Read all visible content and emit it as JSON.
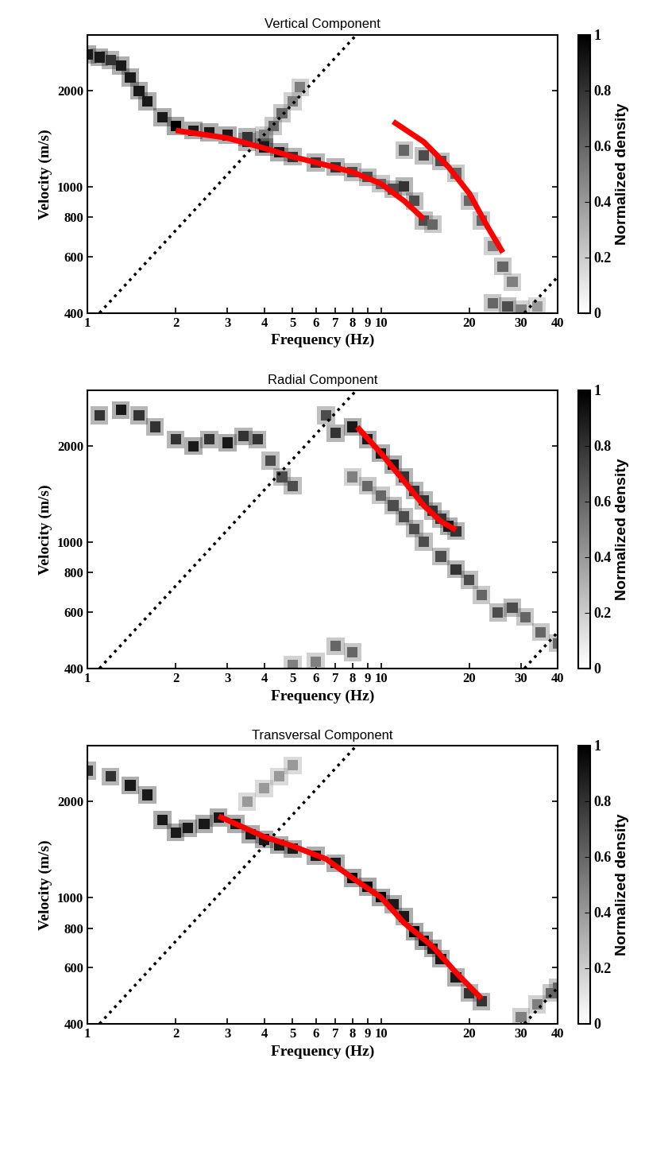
{
  "chart_data": [
    {
      "type": "density",
      "title": "Vertical Component",
      "x_label": "Frequency (Hz)",
      "y_label": "Velocity (m/s)",
      "log": true,
      "xlim": [
        1,
        40
      ],
      "ylim": [
        400,
        3000
      ],
      "xticks": [
        1,
        2,
        3,
        4,
        5,
        6,
        7,
        8,
        9,
        10,
        20,
        30,
        40
      ],
      "yticks": [
        400,
        600,
        800,
        1000,
        2000
      ],
      "colorbar": {
        "label": "Normalized density",
        "range": [
          0,
          1
        ],
        "ticks": [
          0,
          0.2,
          0.4,
          0.6,
          0.8,
          1
        ]
      },
      "density_ridges": [
        {
          "x": [
            1.0,
            1.1,
            1.2,
            1.3,
            1.4,
            1.5,
            1.6,
            1.8,
            2.0,
            2.3,
            2.6,
            3.0,
            3.5,
            4.0
          ],
          "values": [
            2600,
            2550,
            2500,
            2400,
            2200,
            2000,
            1850,
            1650,
            1550,
            1500,
            1480,
            1450,
            1430,
            1400
          ],
          "density": [
            0.9,
            0.9,
            0.8,
            0.9,
            0.9,
            0.9,
            0.9,
            0.9,
            1,
            0.9,
            0.9,
            0.9,
            0.8,
            0.8
          ]
        },
        {
          "x": [
            4.0,
            4.3,
            4.6,
            5.0,
            5.3
          ],
          "values": [
            1450,
            1550,
            1700,
            1850,
            2050
          ],
          "density": [
            0.5,
            0.6,
            0.6,
            0.5,
            0.5
          ]
        },
        {
          "x": [
            3.5,
            4,
            4.5,
            5,
            6,
            7,
            8,
            9,
            10,
            11,
            12,
            13,
            14,
            15
          ],
          "values": [
            1380,
            1330,
            1280,
            1240,
            1190,
            1150,
            1110,
            1070,
            1020,
            980,
            1000,
            900,
            780,
            760
          ],
          "density": [
            0.8,
            0.9,
            0.9,
            0.8,
            0.8,
            0.8,
            0.7,
            0.7,
            0.6,
            0.7,
            0.8,
            0.7,
            0.7,
            0.6
          ]
        },
        {
          "x": [
            12,
            14,
            16,
            18,
            20,
            22,
            24,
            26,
            28
          ],
          "values": [
            1300,
            1250,
            1200,
            1100,
            900,
            780,
            650,
            560,
            500
          ],
          "density": [
            0.6,
            0.7,
            0.7,
            0.6,
            0.6,
            0.6,
            0.5,
            0.6,
            0.5
          ]
        },
        {
          "x": [
            24,
            27,
            30,
            34
          ],
          "values": [
            430,
            420,
            410,
            420
          ],
          "density": [
            0.6,
            0.7,
            0.5,
            0.4
          ]
        }
      ],
      "series": [
        {
          "color": "#ff0000",
          "line_style": "solid",
          "x": [
            2,
            3,
            4,
            5,
            6,
            8,
            10,
            12,
            14
          ],
          "values": [
            1500,
            1420,
            1320,
            1240,
            1190,
            1110,
            1020,
            900,
            790
          ]
        },
        {
          "color": "#ff0000",
          "line_style": "solid",
          "x": [
            11,
            14,
            17,
            20,
            23,
            26
          ],
          "values": [
            1600,
            1380,
            1150,
            950,
            750,
            620
          ]
        },
        {
          "color": "#000000",
          "line_style": "dotted",
          "x": [
            1.1,
            8.25
          ],
          "values": [
            400,
            3000
          ]
        },
        {
          "color": "#000000",
          "line_style": "dotted",
          "x": [
            30.8,
            40
          ],
          "values": [
            400,
            520
          ]
        }
      ]
    },
    {
      "type": "density",
      "title": "Radial Component",
      "x_label": "Frequency (Hz)",
      "y_label": "Velocity (m/s)",
      "log": true,
      "xlim": [
        1,
        40
      ],
      "ylim": [
        400,
        3000
      ],
      "xticks": [
        1,
        2,
        3,
        4,
        5,
        6,
        7,
        8,
        9,
        10,
        20,
        30,
        40
      ],
      "yticks": [
        400,
        600,
        800,
        1000,
        2000
      ],
      "colorbar": {
        "label": "Normalized density",
        "range": [
          0,
          1
        ],
        "ticks": [
          0,
          0.2,
          0.4,
          0.6,
          0.8,
          1
        ]
      },
      "density_ridges": [
        {
          "x": [
            1.1,
            1.3,
            1.5,
            1.7,
            2.0,
            2.3,
            2.6,
            3.0,
            3.4,
            3.8,
            4.2,
            4.6,
            5.0
          ],
          "values": [
            2500,
            2600,
            2500,
            2300,
            2100,
            2000,
            2100,
            2050,
            2150,
            2100,
            1800,
            1600,
            1500
          ],
          "density": [
            0.8,
            0.9,
            0.8,
            0.8,
            0.8,
            0.9,
            0.8,
            0.9,
            0.8,
            0.8,
            0.7,
            0.7,
            0.7
          ]
        },
        {
          "x": [
            6.5,
            7,
            8,
            9,
            10,
            11,
            12,
            13,
            14,
            15,
            16,
            17,
            18
          ],
          "values": [
            2500,
            2200,
            2300,
            2100,
            1900,
            1750,
            1600,
            1450,
            1350,
            1250,
            1180,
            1120,
            1080
          ],
          "density": [
            0.7,
            0.8,
            0.9,
            0.9,
            0.9,
            0.9,
            0.8,
            0.8,
            0.8,
            0.8,
            0.8,
            0.9,
            0.8
          ]
        },
        {
          "x": [
            8,
            9,
            10,
            11,
            12,
            13,
            14,
            16,
            18,
            20,
            22,
            25,
            28,
            31,
            35,
            40
          ],
          "values": [
            1600,
            1500,
            1400,
            1300,
            1200,
            1100,
            1000,
            900,
            820,
            760,
            680,
            600,
            620,
            580,
            520,
            480
          ],
          "density": [
            0.5,
            0.6,
            0.6,
            0.7,
            0.7,
            0.7,
            0.7,
            0.7,
            0.8,
            0.7,
            0.6,
            0.7,
            0.7,
            0.6,
            0.6,
            0.6
          ]
        },
        {
          "x": [
            5,
            6,
            7,
            8
          ],
          "values": [
            410,
            420,
            470,
            450
          ],
          "density": [
            0.5,
            0.5,
            0.6,
            0.6
          ]
        }
      ],
      "series": [
        {
          "color": "#ff0000",
          "line_style": "solid",
          "x": [
            8.3,
            10,
            12,
            14,
            16,
            18
          ],
          "values": [
            2300,
            1900,
            1550,
            1300,
            1160,
            1090
          ]
        },
        {
          "color": "#000000",
          "line_style": "dotted",
          "x": [
            1.1,
            8.25
          ],
          "values": [
            400,
            3000
          ]
        },
        {
          "color": "#000000",
          "line_style": "dotted",
          "x": [
            30.8,
            40
          ],
          "values": [
            400,
            520
          ]
        }
      ]
    },
    {
      "type": "density",
      "title": "Transversal Component",
      "x_label": "Frequency (Hz)",
      "y_label": "Velocity (m/s)",
      "log": true,
      "xlim": [
        1,
        40
      ],
      "ylim": [
        400,
        3000
      ],
      "xticks": [
        1,
        2,
        3,
        4,
        5,
        6,
        7,
        8,
        9,
        10,
        20,
        30,
        40
      ],
      "yticks": [
        400,
        600,
        800,
        1000,
        2000
      ],
      "colorbar": {
        "label": "Normalized density",
        "range": [
          0,
          1
        ],
        "ticks": [
          0,
          0.2,
          0.4,
          0.6,
          0.8,
          1
        ]
      },
      "density_ridges": [
        {
          "x": [
            1,
            1.2,
            1.4,
            1.6,
            1.8,
            2.0,
            2.2,
            2.5,
            2.8,
            3.2,
            3.6,
            4,
            4.5,
            5,
            6,
            7,
            8,
            9,
            10,
            11,
            12,
            13,
            14,
            15,
            16,
            18,
            20,
            22
          ],
          "values": [
            2500,
            2400,
            2250,
            2100,
            1750,
            1600,
            1650,
            1700,
            1780,
            1700,
            1580,
            1520,
            1460,
            1420,
            1350,
            1280,
            1150,
            1080,
            1000,
            950,
            870,
            780,
            730,
            690,
            640,
            560,
            500,
            470
          ],
          "density": [
            0.8,
            0.8,
            0.9,
            0.9,
            0.9,
            0.9,
            0.9,
            0.9,
            0.9,
            0.9,
            0.9,
            0.9,
            0.9,
            0.9,
            0.9,
            0.9,
            1,
            1,
            1,
            0.9,
            0.9,
            1,
            1,
            0.9,
            0.9,
            0.9,
            0.8,
            0.8
          ]
        },
        {
          "x": [
            3.5,
            4,
            4.5,
            5
          ],
          "values": [
            2000,
            2200,
            2400,
            2600
          ],
          "density": [
            0.4,
            0.4,
            0.4,
            0.4
          ]
        },
        {
          "x": [
            30,
            34,
            38,
            40
          ],
          "values": [
            420,
            460,
            500,
            520
          ],
          "density": [
            0.5,
            0.5,
            0.6,
            0.6
          ]
        }
      ],
      "series": [
        {
          "color": "#ff0000",
          "line_style": "solid",
          "x": [
            2.8,
            4,
            5,
            6.5,
            8,
            10,
            12,
            15,
            18,
            22
          ],
          "values": [
            1800,
            1550,
            1450,
            1320,
            1150,
            1000,
            830,
            700,
            580,
            480
          ]
        },
        {
          "color": "#000000",
          "line_style": "dotted",
          "x": [
            1.1,
            8.25
          ],
          "values": [
            400,
            3000
          ]
        },
        {
          "color": "#000000",
          "line_style": "dotted",
          "x": [
            30.8,
            40
          ],
          "values": [
            400,
            520
          ]
        }
      ]
    }
  ]
}
